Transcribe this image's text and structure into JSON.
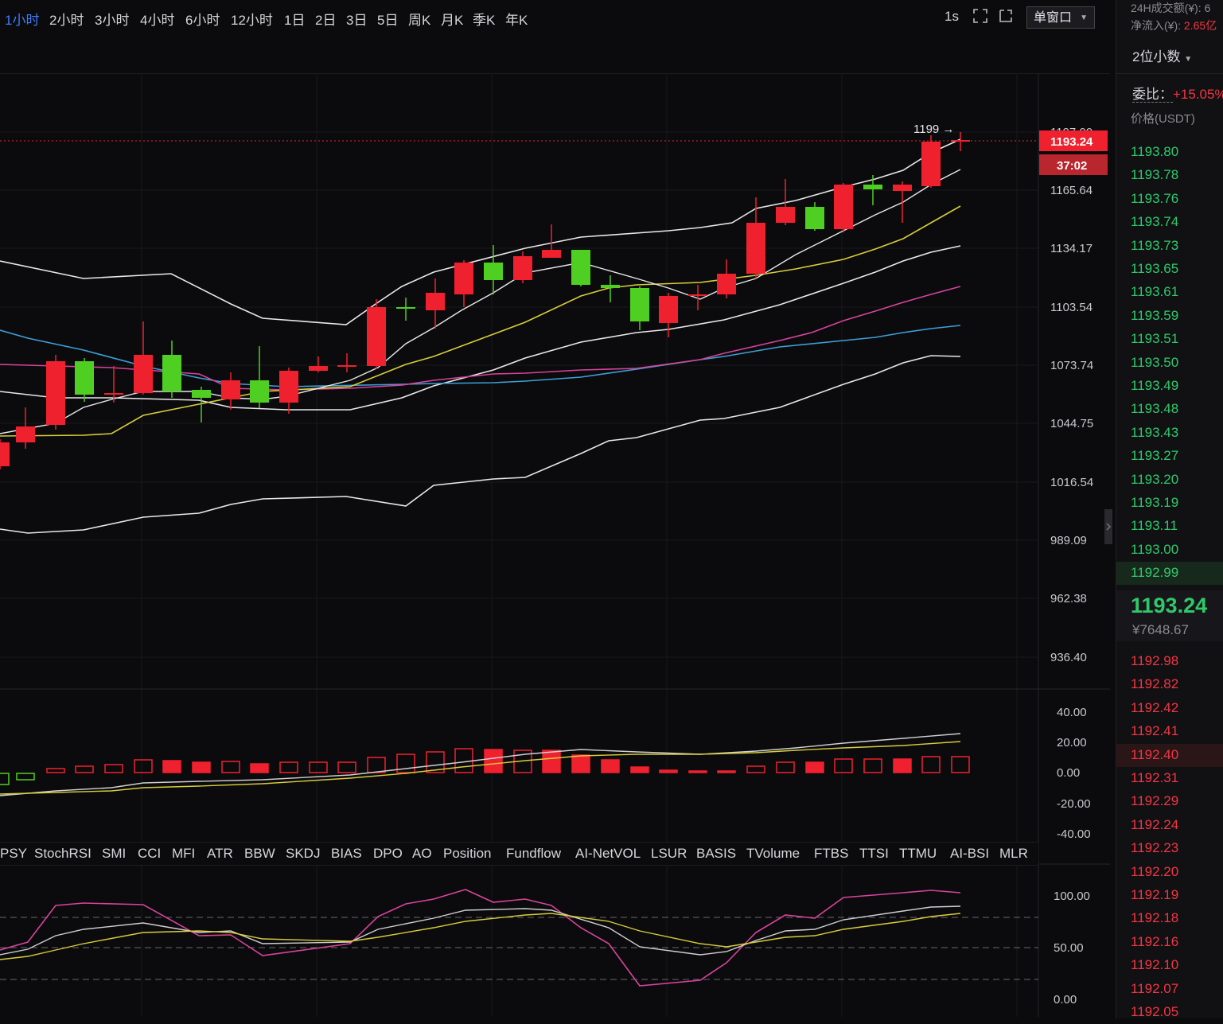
{
  "toolbar": {
    "timeframes": [
      "1小时",
      "2小时",
      "3小时",
      "4小时",
      "6小时",
      "12小时",
      "1日",
      "2日",
      "3日",
      "5日",
      "周K",
      "月K",
      "季K",
      "年K"
    ],
    "active_index": 0,
    "refresh_interval": "1s",
    "window_mode": "单窗口"
  },
  "main_chart": {
    "price_axis": [
      "1165.64",
      "1134.17",
      "1103.54",
      "1073.74",
      "1044.75",
      "1016.54",
      "989.09",
      "962.38",
      "936.40"
    ],
    "current_price_tag": "1193.24",
    "countdown_tag": "37:02",
    "high_marker": "1199",
    "partial_top_label": "1197.00",
    "up_color": "#f0212e",
    "down_color": "#4fcf22"
  },
  "macd_panel": {
    "axis": [
      "40.00",
      "20.00",
      "0.00",
      "-20.00",
      "-40.00"
    ]
  },
  "kdj_panel": {
    "axis": [
      "100.00",
      "50.00",
      "0.00"
    ]
  },
  "indicator_tabs": [
    "PSY",
    "StochRSI",
    "SMI",
    "CCI",
    "MFI",
    "ATR",
    "BBW",
    "SKDJ",
    "BIAS",
    "DPO",
    "AO",
    "Position",
    "Fundflow",
    "AI-NetVOL",
    "LSUR",
    "BASIS",
    "TVolume",
    "FTBS",
    "TTSI",
    "TTMU",
    "AI-BSI",
    "MLR"
  ],
  "right_panel": {
    "volume_label": "24H成交额(¥): 6",
    "netflow_label": "净流入(¥): ",
    "netflow_value": "2.65亿",
    "decimals": "2位小数",
    "ratio_label": "委比：",
    "ratio_value": "+15.05%",
    "price_header": "价格(USDT)",
    "asks": [
      "1193.80",
      "1193.78",
      "1193.76",
      "1193.74",
      "1193.73",
      "1193.65",
      "1193.61",
      "1193.59",
      "1193.51",
      "1193.50",
      "1193.49",
      "1193.48",
      "1193.43",
      "1193.27",
      "1193.20",
      "1193.19",
      "1193.11",
      "1193.00",
      "1192.99"
    ],
    "last_price": "1193.24",
    "last_price_cny": "¥7648.67",
    "bids": [
      "1192.98",
      "1192.82",
      "1192.42",
      "1192.41",
      "1192.40",
      "1192.31",
      "1192.29",
      "1192.24",
      "1192.23",
      "1192.20",
      "1192.19",
      "1192.18",
      "1192.16",
      "1192.10",
      "1192.07",
      "1192.05"
    ]
  }
}
